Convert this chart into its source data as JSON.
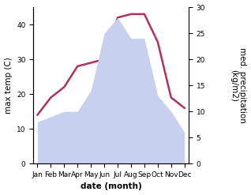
{
  "months": [
    "Jan",
    "Feb",
    "Mar",
    "Apr",
    "May",
    "Jun",
    "Jul",
    "Aug",
    "Sep",
    "Oct",
    "Nov",
    "Dec"
  ],
  "temperature": [
    14,
    19,
    22,
    28,
    29,
    30,
    42,
    43,
    43,
    35,
    19,
    16
  ],
  "precipitation": [
    8,
    9,
    10,
    10,
    14,
    25,
    28,
    24,
    24,
    13,
    10,
    6
  ],
  "temp_color": "#b03060",
  "precip_fill_color": "#c8d0f0",
  "ylim_left": [
    0,
    45
  ],
  "ylim_right": [
    0,
    30
  ],
  "xlabel": "date (month)",
  "ylabel_left": "max temp (C)",
  "ylabel_right": "med. precipitation\n(kg/m2)",
  "label_fontsize": 7.5,
  "tick_fontsize": 6.5,
  "yticks_left": [
    0,
    10,
    20,
    30,
    40
  ],
  "yticks_right": [
    0,
    5,
    10,
    15,
    20,
    25,
    30
  ],
  "background_color": "#ffffff"
}
